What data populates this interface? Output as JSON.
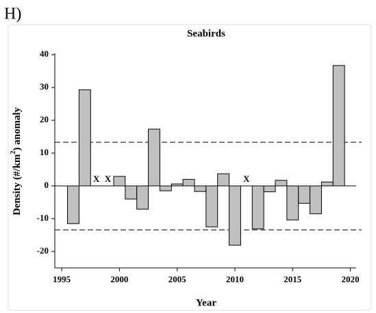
{
  "panel_label": "H)",
  "chart_data": {
    "type": "bar",
    "title": "Seabirds",
    "xlabel": "Year",
    "ylabel_parts": [
      "Density (#/km",
      "2",
      ") anomaly"
    ],
    "x": [
      1996,
      1997,
      1998,
      1999,
      2000,
      2001,
      2002,
      2003,
      2004,
      2005,
      2006,
      2007,
      2008,
      2009,
      2010,
      2011,
      2012,
      2013,
      2014,
      2015,
      2016,
      2017,
      2018,
      2019
    ],
    "values": [
      -11.5,
      29.3,
      null,
      null,
      2.9,
      -4,
      -7.1,
      17.3,
      -1.5,
      0.6,
      2,
      -1.7,
      -12.5,
      3.7,
      -18.1,
      null,
      -13.1,
      -1.8,
      1.7,
      -10.4,
      -5.3,
      -8.5,
      1.2,
      36.7
    ],
    "color": "#c0c0c0",
    "annotations": [
      {
        "text": "X",
        "x": 1998
      },
      {
        "text": "X",
        "x": 1999
      },
      {
        "text": "X",
        "x": 2011
      }
    ],
    "reference_lines": [
      13.3,
      -13.4
    ],
    "xlim": [
      1994.4,
      2020.5
    ],
    "xticks": [
      1995,
      2000,
      2005,
      2010,
      2015,
      2020
    ],
    "ylim": [
      -25,
      40
    ],
    "yticks": [
      -20,
      -10,
      0,
      10,
      20,
      30,
      40
    ]
  }
}
